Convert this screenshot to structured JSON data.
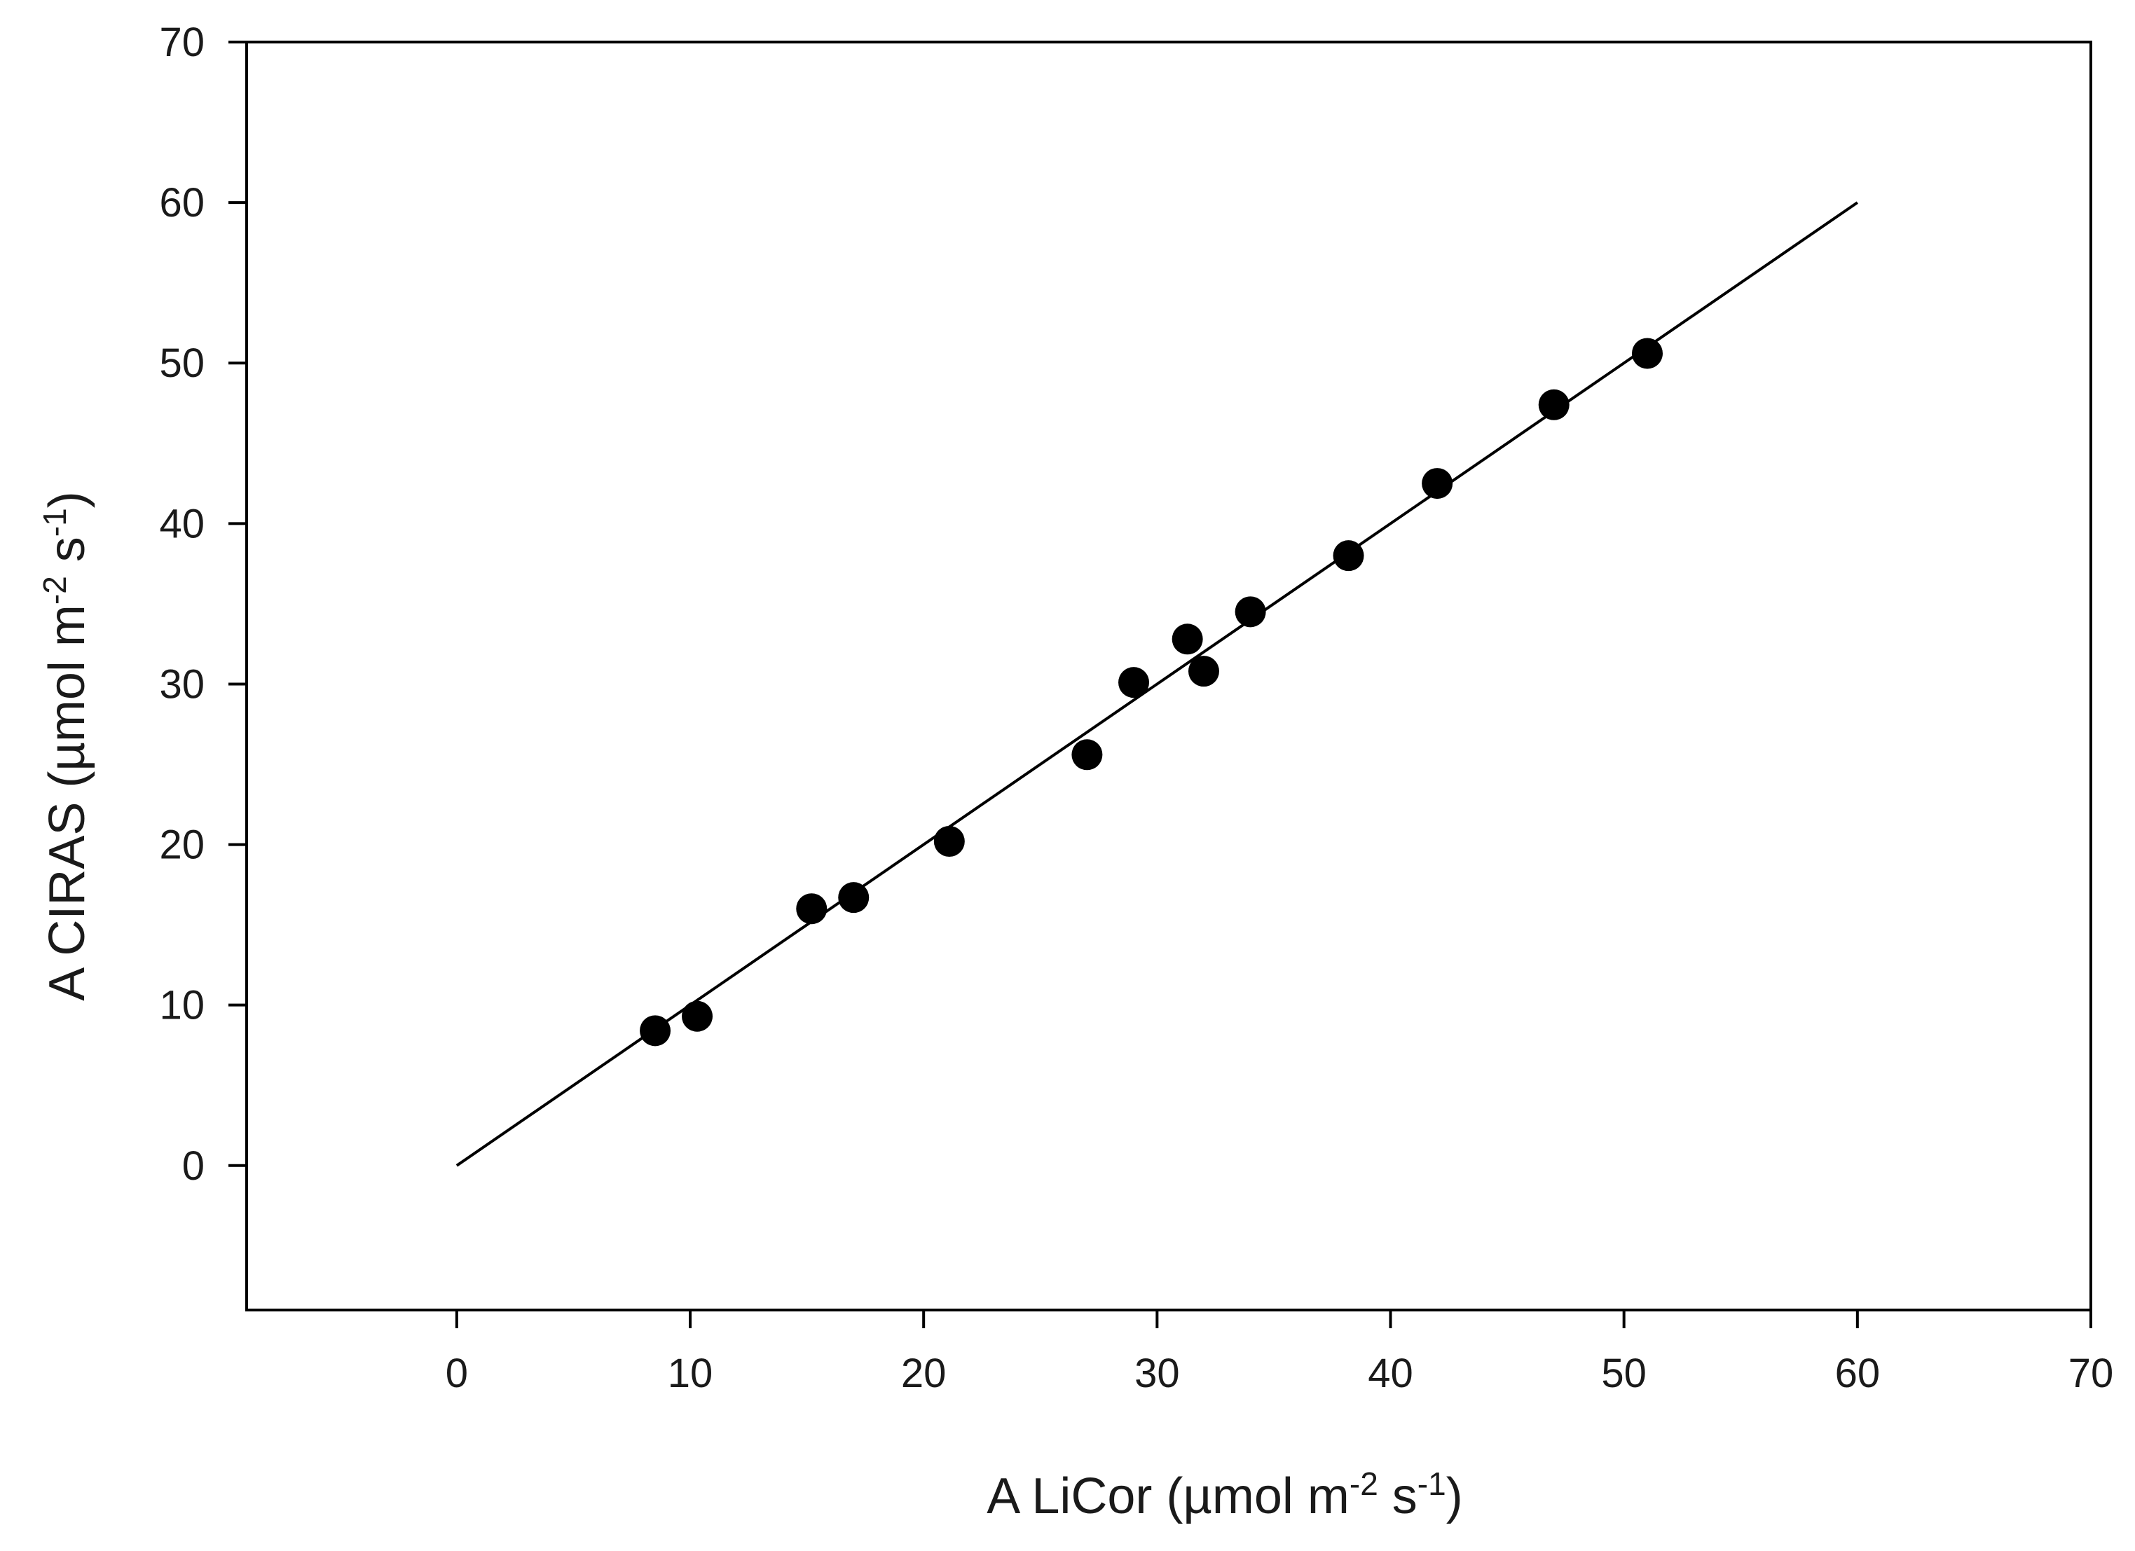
{
  "chart_data": {
    "type": "scatter",
    "xlabel": {
      "parts": [
        {
          "text": "A LiCor (µmol m",
          "sup": false
        },
        {
          "text": "-2",
          "sup": true
        },
        {
          "text": " s",
          "sup": false
        },
        {
          "text": "-1",
          "sup": true
        },
        {
          "text": ")",
          "sup": false
        }
      ]
    },
    "ylabel": {
      "parts": [
        {
          "text": "A CIRAS (µmol m",
          "sup": false
        },
        {
          "text": "-2",
          "sup": true
        },
        {
          "text": " s",
          "sup": false
        },
        {
          "text": "-1",
          "sup": true
        },
        {
          "text": ")",
          "sup": false
        }
      ]
    },
    "xlim": [
      -9,
      70
    ],
    "ylim": [
      -9,
      70
    ],
    "xticks": [
      0,
      10,
      20,
      30,
      40,
      50,
      60,
      70
    ],
    "yticks": [
      0,
      10,
      20,
      30,
      40,
      50,
      60,
      70
    ],
    "grid": false,
    "series": [
      {
        "marker": "filled-circle",
        "color": "#000000",
        "points": [
          {
            "x": 8.5,
            "y": 8.4
          },
          {
            "x": 10.3,
            "y": 9.3
          },
          {
            "x": 15.2,
            "y": 16.0
          },
          {
            "x": 17.0,
            "y": 16.7
          },
          {
            "x": 21.1,
            "y": 20.2
          },
          {
            "x": 27.0,
            "y": 25.6
          },
          {
            "x": 29.0,
            "y": 30.1
          },
          {
            "x": 31.3,
            "y": 32.8
          },
          {
            "x": 32.0,
            "y": 30.8
          },
          {
            "x": 34.0,
            "y": 34.5
          },
          {
            "x": 38.2,
            "y": 38.0
          },
          {
            "x": 42.0,
            "y": 42.5
          },
          {
            "x": 47.0,
            "y": 47.4
          },
          {
            "x": 51.0,
            "y": 50.6
          }
        ]
      }
    ],
    "reference_line": {
      "x": [
        0,
        60
      ],
      "y": [
        0,
        60
      ],
      "color": "#000000"
    }
  }
}
